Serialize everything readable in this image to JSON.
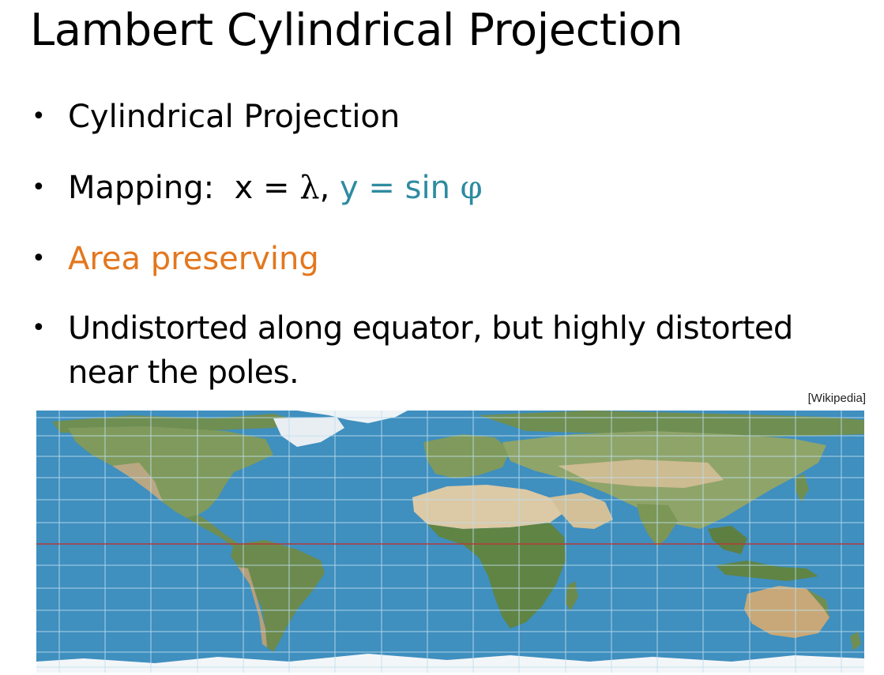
{
  "slide": {
    "title": "Lambert Cylindrical Projection",
    "bullets": [
      {
        "text": "Cylindrical Projection"
      },
      {
        "label": "Mapping:",
        "x_part": "x = ",
        "lambda": "λ",
        "sep": ",",
        "y_part": "y = sin ",
        "phi": "φ"
      },
      {
        "text": "Area preserving"
      },
      {
        "line1": "Undistorted along equator, but highly distorted",
        "line2": "near the poles."
      }
    ],
    "source": "[Wikipedia]"
  },
  "colors": {
    "teal": "#2e8ba0",
    "orange": "#e3771e",
    "ocean": "#3f8fbf",
    "land": "#7f9a5c",
    "desert": "#d9c8a4",
    "ice": "#f3f6f8",
    "grid": "#bfe0ef",
    "equator": "#b43c3c"
  }
}
